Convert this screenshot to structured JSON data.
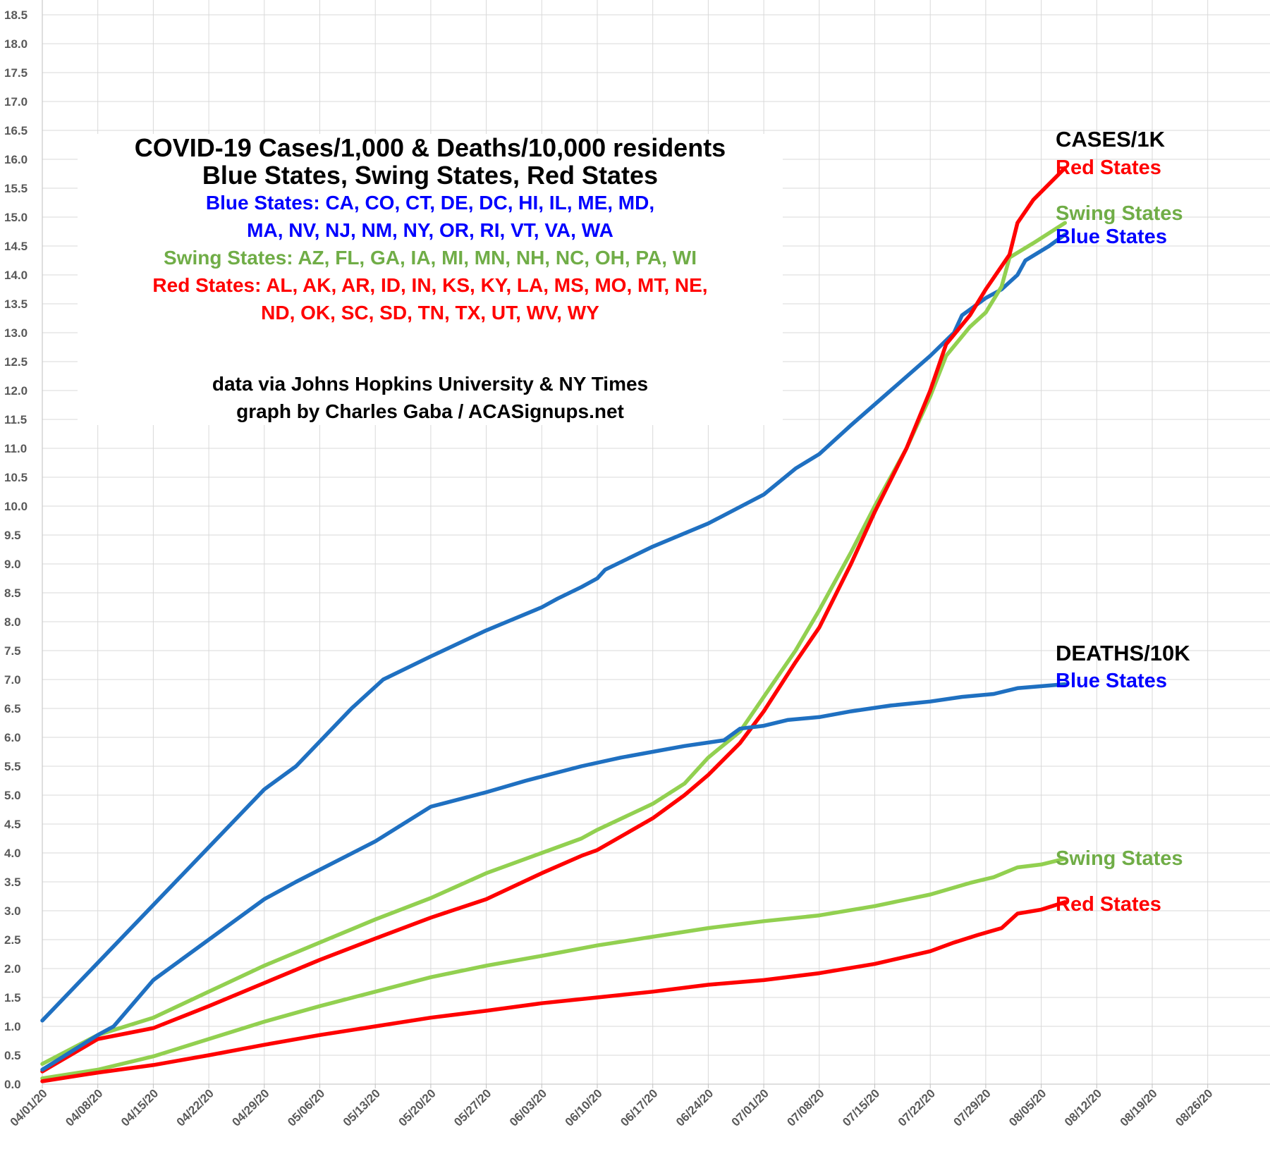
{
  "title": {
    "line1": "COVID-19 Cases/1,000 & Deaths/10,000 residents",
    "line2": "Blue States, Swing States, Red States",
    "blue_line1": "Blue States: CA, CO, CT, DE, DC, HI, IL, ME, MD,",
    "blue_line2": "MA, NV, NJ, NM, NY, OR, RI, VT, VA, WA",
    "swing_line": "Swing States: AZ, FL, GA, IA, MI, MN, NH, NC, OH, PA, WI",
    "red_line1": "Red States: AL, AK, AR, ID, IN, KS, KY, LA, MS, MO, MT, NE,",
    "red_line2": "ND, OK, SC, SD, TN, TX, UT, WV, WY",
    "credit1": "data via Johns Hopkins University & NY Times",
    "credit2": "graph by Charles Gaba / ACASignups.net"
  },
  "labels": {
    "cases_header": "CASES/1K",
    "cases_red": "Red States",
    "cases_swing": "Swing States",
    "cases_blue": "Blue States",
    "deaths_header": "DEATHS/10K",
    "deaths_blue": "Blue States",
    "deaths_swing": "Swing States",
    "deaths_red": "Red States"
  },
  "colors": {
    "blue": "#1f70c1",
    "swing": "#92d050",
    "red": "#ff0000",
    "text_blue": "#0000ff",
    "text_green": "#70ad47",
    "axis": "#595959",
    "grid": "#d9d9d9"
  },
  "chart_data": {
    "type": "line",
    "ylim": [
      0,
      18.5
    ],
    "ytick_step": 0.5,
    "xtick_labels": [
      "04/01/20",
      "04/08/20",
      "04/15/20",
      "04/22/20",
      "04/29/20",
      "05/06/20",
      "05/13/20",
      "05/20/20",
      "05/27/20",
      "06/03/20",
      "06/10/20",
      "06/17/20",
      "06/24/20",
      "07/01/20",
      "07/08/20",
      "07/15/20",
      "07/22/20",
      "07/29/20",
      "08/05/20",
      "08/12/20",
      "08/19/20",
      "08/26/20"
    ],
    "x_unit": "days since 04/01/20",
    "series": [
      {
        "name": "Blue States Cases/1K",
        "color": "blue",
        "points": [
          [
            0,
            1.1
          ],
          [
            7,
            2.1
          ],
          [
            14,
            3.1
          ],
          [
            21,
            4.1
          ],
          [
            28,
            5.1
          ],
          [
            32,
            5.5
          ],
          [
            39,
            6.5
          ],
          [
            43,
            7.0
          ],
          [
            49,
            7.4
          ],
          [
            56,
            7.85
          ],
          [
            63,
            8.25
          ],
          [
            65,
            8.4
          ],
          [
            68,
            8.6
          ],
          [
            70,
            8.75
          ],
          [
            71,
            8.9
          ],
          [
            77,
            9.3
          ],
          [
            84,
            9.7
          ],
          [
            91,
            10.2
          ],
          [
            95,
            10.65
          ],
          [
            98,
            10.9
          ],
          [
            102,
            11.4
          ],
          [
            107,
            12.0
          ],
          [
            112,
            12.6
          ],
          [
            115,
            13.0
          ],
          [
            116,
            13.3
          ],
          [
            119,
            13.6
          ],
          [
            121,
            13.75
          ],
          [
            123,
            14.0
          ],
          [
            124,
            14.25
          ],
          [
            127,
            14.5
          ],
          [
            129,
            14.7
          ]
        ]
      },
      {
        "name": "Swing States Cases/1K",
        "color": "swing",
        "points": [
          [
            0,
            0.35
          ],
          [
            7,
            0.85
          ],
          [
            14,
            1.15
          ],
          [
            21,
            1.6
          ],
          [
            28,
            2.05
          ],
          [
            35,
            2.45
          ],
          [
            42,
            2.85
          ],
          [
            49,
            3.22
          ],
          [
            56,
            3.65
          ],
          [
            63,
            4.0
          ],
          [
            68,
            4.25
          ],
          [
            70,
            4.4
          ],
          [
            77,
            4.85
          ],
          [
            81,
            5.2
          ],
          [
            84,
            5.65
          ],
          [
            88,
            6.1
          ],
          [
            91,
            6.7
          ],
          [
            95,
            7.5
          ],
          [
            98,
            8.2
          ],
          [
            102,
            9.2
          ],
          [
            105,
            10.0
          ],
          [
            109,
            11.0
          ],
          [
            112,
            11.9
          ],
          [
            114,
            12.6
          ],
          [
            117,
            13.1
          ],
          [
            119,
            13.35
          ],
          [
            121,
            13.8
          ],
          [
            122,
            14.3
          ],
          [
            125,
            14.55
          ],
          [
            129,
            14.9
          ]
        ]
      },
      {
        "name": "Red States Cases/1K",
        "color": "red",
        "points": [
          [
            0,
            0.22
          ],
          [
            7,
            0.78
          ],
          [
            14,
            0.97
          ],
          [
            21,
            1.35
          ],
          [
            28,
            1.75
          ],
          [
            35,
            2.15
          ],
          [
            42,
            2.52
          ],
          [
            49,
            2.88
          ],
          [
            56,
            3.2
          ],
          [
            63,
            3.65
          ],
          [
            68,
            3.95
          ],
          [
            70,
            4.05
          ],
          [
            77,
            4.6
          ],
          [
            81,
            5.0
          ],
          [
            84,
            5.35
          ],
          [
            88,
            5.9
          ],
          [
            91,
            6.45
          ],
          [
            95,
            7.3
          ],
          [
            98,
            7.9
          ],
          [
            102,
            9.0
          ],
          [
            105,
            9.9
          ],
          [
            109,
            11.0
          ],
          [
            112,
            12.0
          ],
          [
            114,
            12.8
          ],
          [
            117,
            13.3
          ],
          [
            119,
            13.75
          ],
          [
            122,
            14.35
          ],
          [
            123,
            14.9
          ],
          [
            125,
            15.3
          ],
          [
            129,
            15.85
          ]
        ]
      },
      {
        "name": "Blue States Deaths/10K",
        "color": "blue",
        "points": [
          [
            0,
            0.25
          ],
          [
            7,
            0.85
          ],
          [
            9,
            1.0
          ],
          [
            14,
            1.8
          ],
          [
            21,
            2.5
          ],
          [
            28,
            3.2
          ],
          [
            32,
            3.5
          ],
          [
            42,
            4.2
          ],
          [
            49,
            4.8
          ],
          [
            56,
            5.05
          ],
          [
            61,
            5.25
          ],
          [
            68,
            5.5
          ],
          [
            73,
            5.65
          ],
          [
            77,
            5.75
          ],
          [
            81,
            5.85
          ],
          [
            86,
            5.95
          ],
          [
            88,
            6.15
          ],
          [
            91,
            6.2
          ],
          [
            94,
            6.3
          ],
          [
            98,
            6.35
          ],
          [
            102,
            6.45
          ],
          [
            107,
            6.55
          ],
          [
            112,
            6.62
          ],
          [
            116,
            6.7
          ],
          [
            120,
            6.75
          ],
          [
            123,
            6.85
          ],
          [
            129,
            6.92
          ]
        ]
      },
      {
        "name": "Swing States Deaths/10K",
        "color": "swing",
        "points": [
          [
            0,
            0.1
          ],
          [
            7,
            0.25
          ],
          [
            14,
            0.48
          ],
          [
            21,
            0.78
          ],
          [
            28,
            1.08
          ],
          [
            35,
            1.35
          ],
          [
            42,
            1.6
          ],
          [
            49,
            1.85
          ],
          [
            56,
            2.05
          ],
          [
            63,
            2.22
          ],
          [
            70,
            2.4
          ],
          [
            77,
            2.55
          ],
          [
            84,
            2.7
          ],
          [
            91,
            2.82
          ],
          [
            98,
            2.92
          ],
          [
            105,
            3.08
          ],
          [
            112,
            3.28
          ],
          [
            117,
            3.48
          ],
          [
            120,
            3.58
          ],
          [
            123,
            3.75
          ],
          [
            126,
            3.8
          ],
          [
            129,
            3.9
          ]
        ]
      },
      {
        "name": "Red States Deaths/10K",
        "color": "red",
        "points": [
          [
            0,
            0.05
          ],
          [
            7,
            0.2
          ],
          [
            14,
            0.33
          ],
          [
            21,
            0.5
          ],
          [
            28,
            0.68
          ],
          [
            35,
            0.85
          ],
          [
            42,
            1.0
          ],
          [
            49,
            1.15
          ],
          [
            56,
            1.27
          ],
          [
            63,
            1.4
          ],
          [
            70,
            1.5
          ],
          [
            77,
            1.6
          ],
          [
            84,
            1.72
          ],
          [
            91,
            1.8
          ],
          [
            98,
            1.92
          ],
          [
            105,
            2.08
          ],
          [
            112,
            2.3
          ],
          [
            115,
            2.45
          ],
          [
            118,
            2.58
          ],
          [
            121,
            2.7
          ],
          [
            123,
            2.95
          ],
          [
            126,
            3.02
          ],
          [
            129,
            3.15
          ]
        ]
      }
    ]
  }
}
